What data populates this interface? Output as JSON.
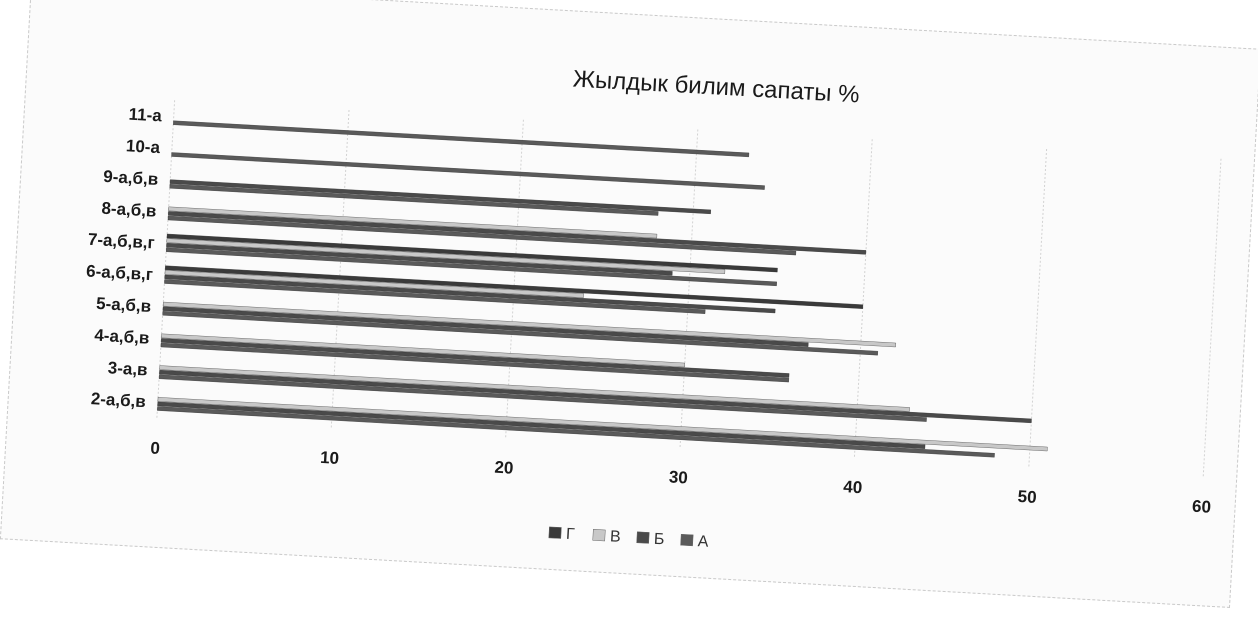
{
  "chart_data": {
    "type": "bar",
    "orientation": "horizontal",
    "title": "Жылдык билим сапаты %",
    "xlabel": "",
    "ylabel": "",
    "xlim": [
      0,
      60
    ],
    "x_ticks": [
      "0",
      "10",
      "20",
      "30",
      "40",
      "50",
      "60"
    ],
    "grid": true,
    "legend_position": "bottom",
    "categories": [
      "11-а",
      "10-а",
      "9-а,б,в",
      "8-а,б,в",
      "7-а,б,в,г",
      "6-а,б,в,г",
      "5-а,б,в",
      "4-а,б,в",
      "3-а,в",
      "2-а,б,в"
    ],
    "series": [
      {
        "name": "Г",
        "color": "#3a3a3a",
        "values": [
          null,
          null,
          null,
          null,
          35,
          40,
          null,
          null,
          null,
          null
        ]
      },
      {
        "name": "В",
        "color": "#c8c8c8",
        "values": [
          null,
          null,
          null,
          28,
          32,
          24,
          42,
          30,
          43,
          51
        ]
      },
      {
        "name": "Б",
        "color": "#4a4a4a",
        "values": [
          null,
          null,
          31,
          40,
          29,
          35,
          37,
          36,
          50,
          44
        ]
      },
      {
        "name": "А",
        "color": "#5a5a5a",
        "values": [
          33,
          34,
          28,
          36,
          35,
          31,
          41,
          36,
          44,
          48
        ]
      }
    ]
  }
}
